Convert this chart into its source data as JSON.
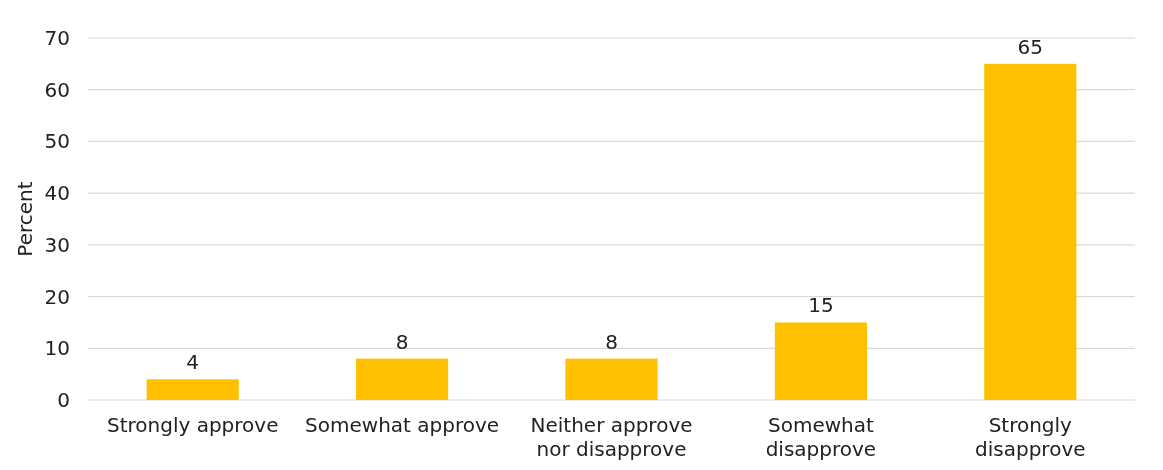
{
  "chart_data": {
    "type": "bar",
    "ylabel": "Percent",
    "categories": [
      "Strongly approve",
      "Somewhat approve",
      "Neither approve nor disapprove",
      "Somewhat disapprove",
      "Strongly disapprove"
    ],
    "values": [
      4,
      8,
      8,
      15,
      65
    ],
    "color": "#ffc000",
    "ylim": [
      0,
      70
    ],
    "yticks": [
      0,
      10,
      20,
      30,
      40,
      50,
      60,
      70
    ],
    "grid": "y",
    "data_labels": true
  }
}
